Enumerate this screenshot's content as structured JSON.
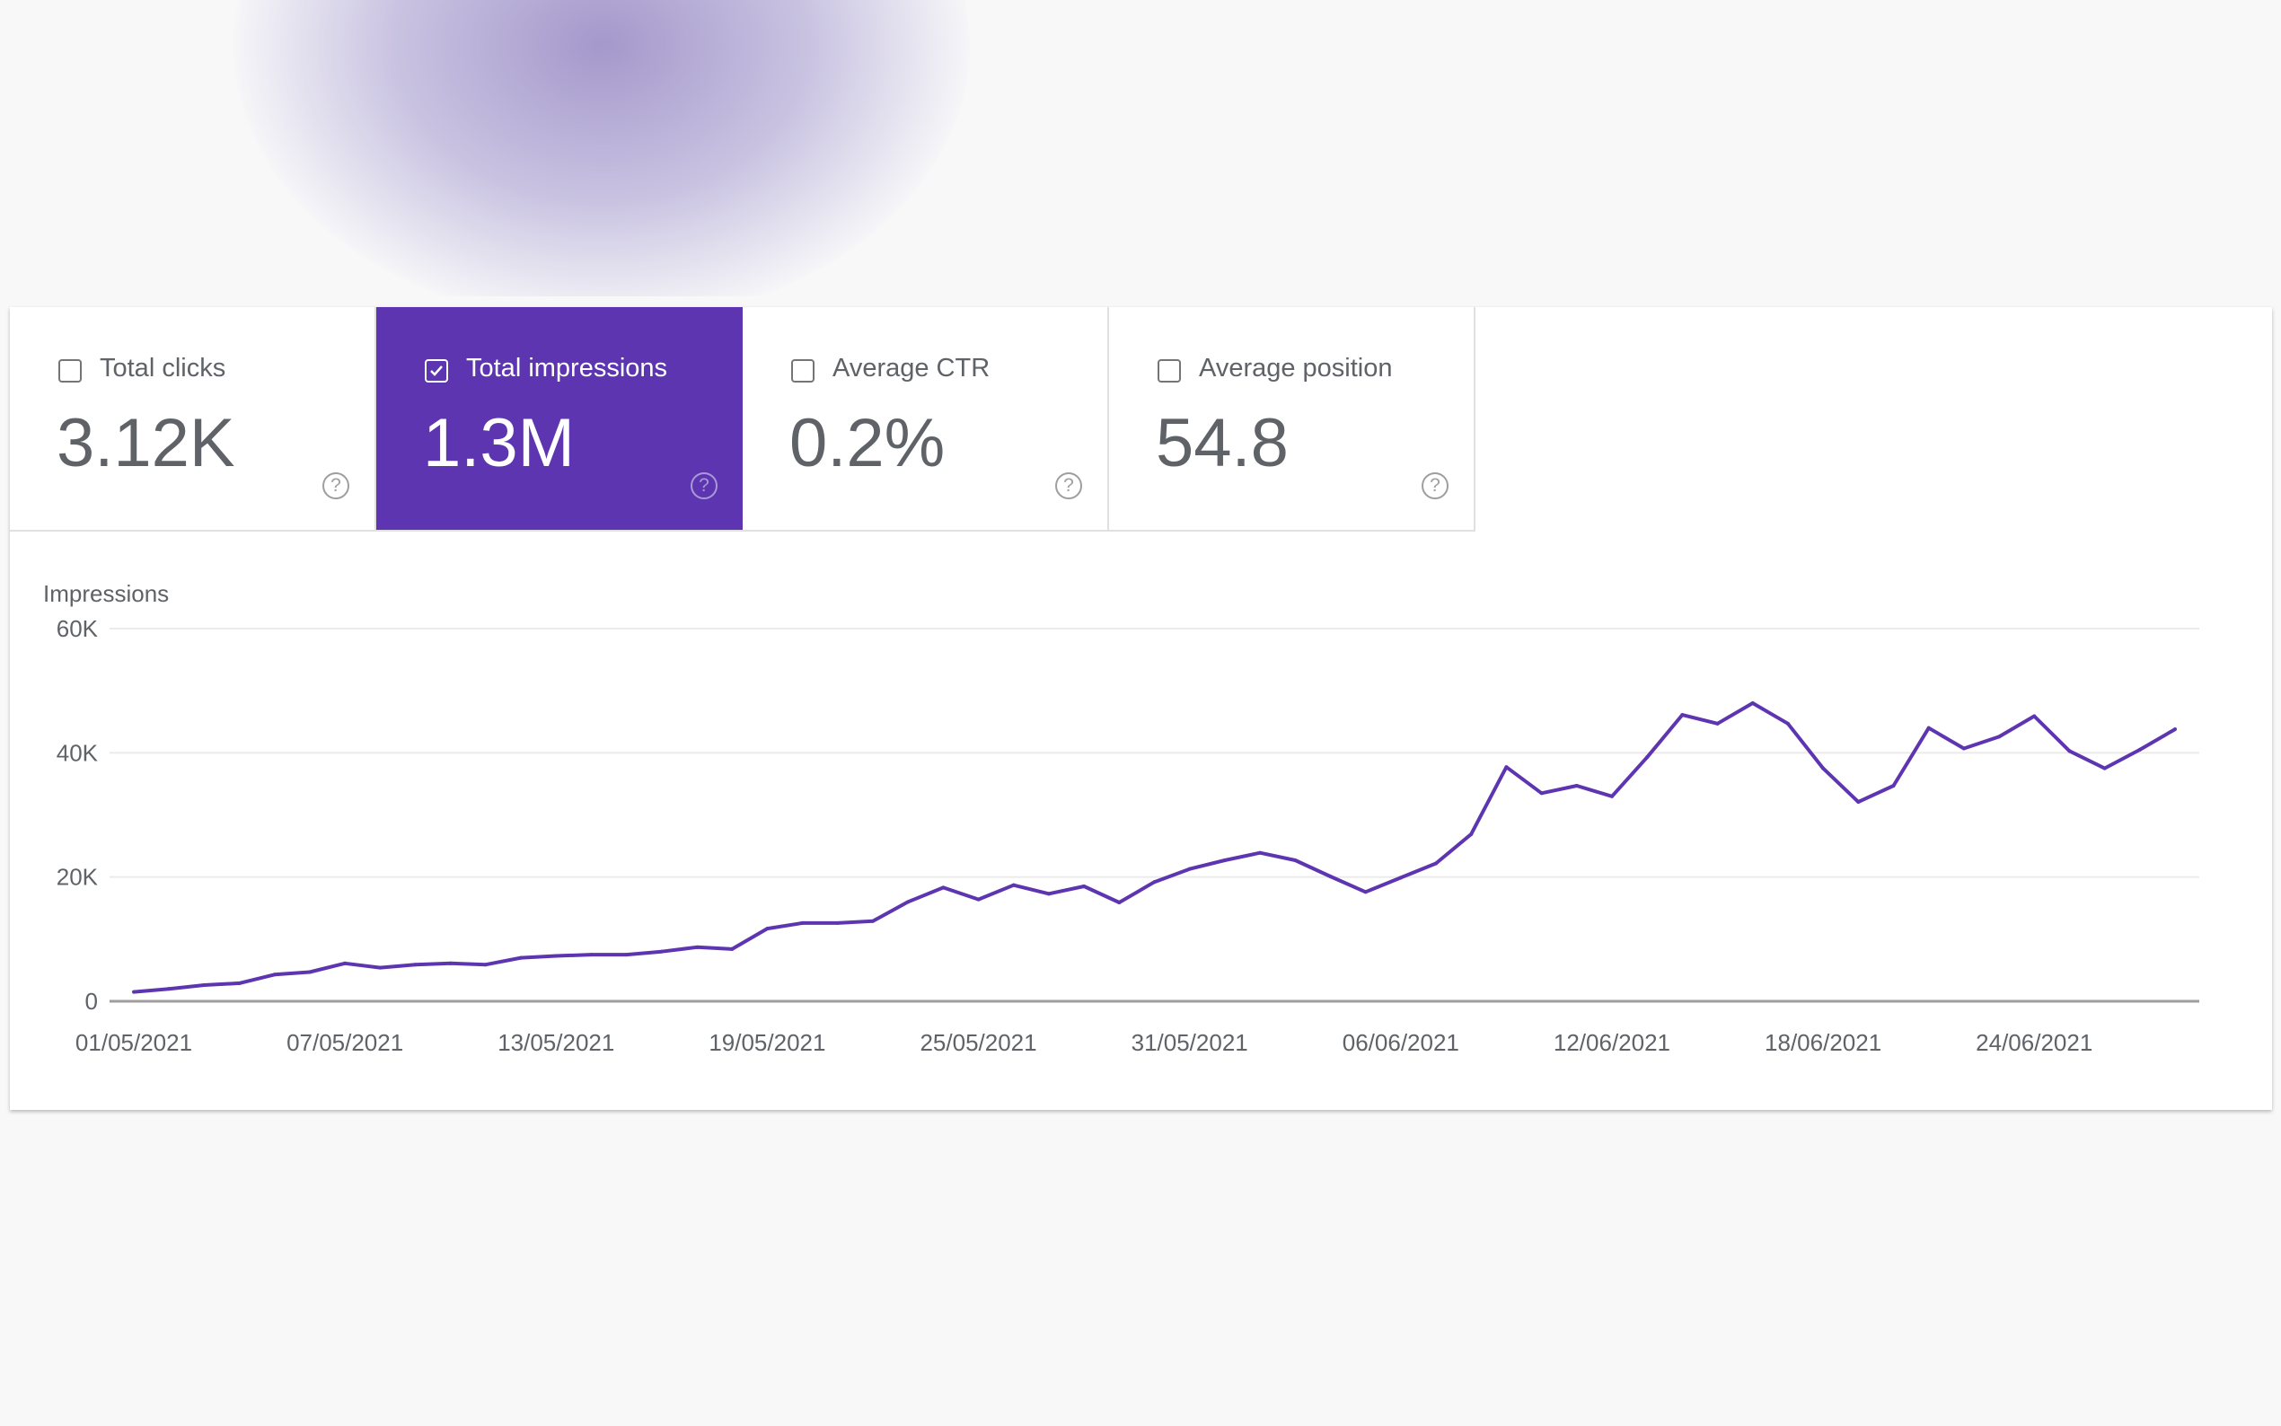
{
  "metrics": [
    {
      "label": "Total clicks",
      "value": "3.12K",
      "checked": false
    },
    {
      "label": "Total impressions",
      "value": "1.3M",
      "checked": true
    },
    {
      "label": "Average CTR",
      "value": "0.2%",
      "checked": false
    },
    {
      "label": "Average position",
      "value": "54.8",
      "checked": false
    }
  ],
  "help_glyph": "?",
  "colors": {
    "accent": "#5e35b1",
    "line": "#5e35b1"
  },
  "chart_data": {
    "type": "line",
    "ylabel": "Impressions",
    "ylim": [
      0,
      60000
    ],
    "yticks": [
      0,
      20000,
      40000,
      60000
    ],
    "ytick_labels": [
      "0",
      "20K",
      "40K",
      "60K"
    ],
    "x_start": "01/05/2021",
    "xtick_labels": [
      "01/05/2021",
      "07/05/2021",
      "13/05/2021",
      "19/05/2021",
      "25/05/2021",
      "31/05/2021",
      "06/06/2021",
      "12/06/2021",
      "18/06/2021",
      "24/06/2021"
    ],
    "xtick_step_days": 6,
    "grid": true,
    "series": [
      {
        "name": "Impressions",
        "values": [
          1500,
          2000,
          2600,
          2900,
          4300,
          4700,
          6100,
          5400,
          5900,
          6100,
          5900,
          7000,
          7300,
          7500,
          7500,
          8000,
          8700,
          8400,
          11700,
          12600,
          12600,
          12900,
          16000,
          18300,
          16400,
          18700,
          17300,
          18500,
          15900,
          19200,
          21300,
          22700,
          23900,
          22700,
          20100,
          17600,
          19900,
          22200,
          26900,
          37700,
          33500,
          34700,
          33000,
          39300,
          46100,
          44700,
          48000,
          44700,
          37500,
          32100,
          34700,
          44000,
          40700,
          42600,
          45900,
          40300,
          37500,
          40500,
          43800
        ]
      }
    ]
  }
}
